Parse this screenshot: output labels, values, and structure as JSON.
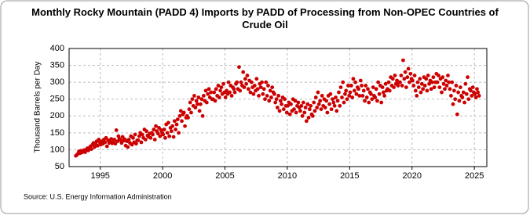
{
  "chart_data": {
    "type": "scatter",
    "title": "Monthly Rocky Mountain (PADD 4) Imports by PADD of Processing from Non-OPEC Countries of Crude Oil",
    "y_label": "Thousand Barrels per Day",
    "source": "Source: U.S. Energy Information Administration",
    "color": "#cc0000",
    "grid": true,
    "xlim": [
      1992.5,
      2026
    ],
    "xticks": [
      1995,
      2000,
      2005,
      2010,
      2015,
      2020,
      2025
    ],
    "ylim": [
      50,
      400
    ],
    "yticks": [
      50,
      100,
      150,
      200,
      250,
      300,
      350,
      400
    ],
    "x": [
      1993.04,
      1993.13,
      1993.21,
      1993.29,
      1993.38,
      1993.46,
      1993.54,
      1993.63,
      1993.71,
      1993.79,
      1993.88,
      1993.96,
      1994.04,
      1994.13,
      1994.21,
      1994.29,
      1994.38,
      1994.46,
      1994.54,
      1994.63,
      1994.71,
      1994.79,
      1994.88,
      1994.96,
      1995.04,
      1995.13,
      1995.21,
      1995.29,
      1995.38,
      1995.46,
      1995.54,
      1995.63,
      1995.71,
      1995.79,
      1995.88,
      1995.96,
      1996.04,
      1996.13,
      1996.21,
      1996.29,
      1996.38,
      1996.46,
      1996.54,
      1996.63,
      1996.71,
      1996.79,
      1996.88,
      1996.96,
      1997.04,
      1997.13,
      1997.21,
      1997.29,
      1997.38,
      1997.46,
      1997.54,
      1997.63,
      1997.71,
      1997.79,
      1997.88,
      1997.96,
      1998.04,
      1998.13,
      1998.21,
      1998.29,
      1998.38,
      1998.46,
      1998.54,
      1998.63,
      1998.71,
      1998.79,
      1998.88,
      1998.96,
      1999.04,
      1999.13,
      1999.21,
      1999.29,
      1999.38,
      1999.46,
      1999.54,
      1999.63,
      1999.71,
      1999.79,
      1999.88,
      1999.96,
      2000.04,
      2000.13,
      2000.21,
      2000.29,
      2000.38,
      2000.46,
      2000.54,
      2000.63,
      2000.71,
      2000.79,
      2000.88,
      2000.96,
      2001.04,
      2001.13,
      2001.21,
      2001.29,
      2001.38,
      2001.46,
      2001.54,
      2001.63,
      2001.71,
      2001.79,
      2001.88,
      2001.96,
      2002.04,
      2002.13,
      2002.21,
      2002.29,
      2002.38,
      2002.46,
      2002.54,
      2002.63,
      2002.71,
      2002.79,
      2002.88,
      2002.96,
      2003.04,
      2003.13,
      2003.21,
      2003.29,
      2003.38,
      2003.46,
      2003.54,
      2003.63,
      2003.71,
      2003.79,
      2003.88,
      2003.96,
      2004.04,
      2004.13,
      2004.21,
      2004.29,
      2004.38,
      2004.46,
      2004.54,
      2004.63,
      2004.71,
      2004.79,
      2004.88,
      2004.96,
      2005.04,
      2005.13,
      2005.21,
      2005.29,
      2005.38,
      2005.46,
      2005.54,
      2005.63,
      2005.71,
      2005.79,
      2005.88,
      2005.96,
      2006.04,
      2006.13,
      2006.21,
      2006.29,
      2006.38,
      2006.46,
      2006.54,
      2006.63,
      2006.71,
      2006.79,
      2006.88,
      2006.96,
      2007.04,
      2007.13,
      2007.21,
      2007.29,
      2007.38,
      2007.46,
      2007.54,
      2007.63,
      2007.71,
      2007.79,
      2007.88,
      2007.96,
      2008.04,
      2008.13,
      2008.21,
      2008.29,
      2008.38,
      2008.46,
      2008.54,
      2008.63,
      2008.71,
      2008.79,
      2008.88,
      2008.96,
      2009.04,
      2009.13,
      2009.21,
      2009.29,
      2009.38,
      2009.46,
      2009.54,
      2009.63,
      2009.71,
      2009.79,
      2009.88,
      2009.96,
      2010.04,
      2010.13,
      2010.21,
      2010.29,
      2010.38,
      2010.46,
      2010.54,
      2010.63,
      2010.71,
      2010.79,
      2010.88,
      2010.96,
      2011.04,
      2011.13,
      2011.21,
      2011.29,
      2011.38,
      2011.46,
      2011.54,
      2011.63,
      2011.71,
      2011.79,
      2011.88,
      2011.96,
      2012.04,
      2012.13,
      2012.21,
      2012.29,
      2012.38,
      2012.46,
      2012.54,
      2012.63,
      2012.71,
      2012.79,
      2012.88,
      2012.96,
      2013.04,
      2013.13,
      2013.21,
      2013.29,
      2013.38,
      2013.46,
      2013.54,
      2013.63,
      2013.71,
      2013.79,
      2013.88,
      2013.96,
      2014.04,
      2014.13,
      2014.21,
      2014.29,
      2014.38,
      2014.46,
      2014.54,
      2014.63,
      2014.71,
      2014.79,
      2014.88,
      2014.96,
      2015.04,
      2015.13,
      2015.21,
      2015.29,
      2015.38,
      2015.46,
      2015.54,
      2015.63,
      2015.71,
      2015.79,
      2015.88,
      2015.96,
      2016.04,
      2016.13,
      2016.21,
      2016.29,
      2016.38,
      2016.46,
      2016.54,
      2016.63,
      2016.71,
      2016.79,
      2016.88,
      2016.96,
      2017.04,
      2017.13,
      2017.21,
      2017.29,
      2017.38,
      2017.46,
      2017.54,
      2017.63,
      2017.71,
      2017.79,
      2017.88,
      2017.96,
      2018.04,
      2018.13,
      2018.21,
      2018.29,
      2018.38,
      2018.46,
      2018.54,
      2018.63,
      2018.71,
      2018.79,
      2018.88,
      2018.96,
      2019.04,
      2019.13,
      2019.21,
      2019.29,
      2019.38,
      2019.46,
      2019.54,
      2019.63,
      2019.71,
      2019.79,
      2019.88,
      2019.96,
      2020.04,
      2020.13,
      2020.21,
      2020.29,
      2020.38,
      2020.46,
      2020.54,
      2020.63,
      2020.71,
      2020.79,
      2020.88,
      2020.96,
      2021.04,
      2021.13,
      2021.21,
      2021.29,
      2021.38,
      2021.46,
      2021.54,
      2021.63,
      2021.71,
      2021.79,
      2021.88,
      2021.96,
      2022.04,
      2022.13,
      2022.21,
      2022.29,
      2022.38,
      2022.46,
      2022.54,
      2022.63,
      2022.71,
      2022.79,
      2022.88,
      2022.96,
      2023.04,
      2023.13,
      2023.21,
      2023.29,
      2023.38,
      2023.46,
      2023.54,
      2023.63,
      2023.71,
      2023.79,
      2023.88,
      2023.96,
      2024.04,
      2024.13,
      2024.21,
      2024.29,
      2024.38,
      2024.46,
      2024.54,
      2024.63,
      2024.71,
      2024.79,
      2024.88,
      2024.96,
      2025.04,
      2025.13,
      2025.21,
      2025.29,
      2025.38
    ],
    "values": [
      82,
      85,
      88,
      95,
      90,
      97,
      92,
      96,
      99,
      93,
      100,
      104,
      98,
      105,
      110,
      102,
      115,
      120,
      108,
      118,
      125,
      112,
      130,
      122,
      115,
      125,
      118,
      130,
      122,
      135,
      110,
      128,
      120,
      125,
      132,
      119,
      122,
      130,
      118,
      158,
      125,
      140,
      132,
      128,
      120,
      138,
      127,
      131,
      112,
      125,
      108,
      130,
      120,
      140,
      115,
      135,
      122,
      145,
      118,
      128,
      128,
      140,
      150,
      122,
      145,
      135,
      160,
      130,
      155,
      142,
      138,
      148,
      135,
      150,
      145,
      160,
      130,
      170,
      155,
      148,
      165,
      140,
      158,
      150,
      145,
      160,
      135,
      175,
      150,
      180,
      140,
      165,
      155,
      170,
      138,
      185,
      160,
      175,
      190,
      150,
      200,
      215,
      185,
      205,
      210,
      170,
      195,
      200,
      195,
      220,
      240,
      210,
      250,
      230,
      260,
      225,
      245,
      235,
      255,
      215,
      235,
      250,
      200,
      260,
      245,
      275,
      240,
      265,
      280,
      255,
      270,
      250,
      250,
      270,
      245,
      280,
      260,
      290,
      255,
      275,
      285,
      265,
      295,
      270,
      255,
      275,
      265,
      300,
      270,
      290,
      260,
      285,
      280,
      270,
      295,
      300,
      280,
      345,
      275,
      300,
      290,
      330,
      285,
      310,
      295,
      320,
      280,
      305,
      270,
      300,
      285,
      265,
      290,
      275,
      310,
      280,
      260,
      295,
      285,
      300,
      265,
      280,
      250,
      300,
      260,
      290,
      245,
      275,
      255,
      285,
      270,
      265,
      240,
      250,
      225,
      260,
      215,
      245,
      235,
      255,
      220,
      250,
      230,
      210,
      230,
      240,
      205,
      235,
      215,
      250,
      220,
      245,
      210,
      230,
      240,
      225,
      215,
      230,
      200,
      240,
      210,
      225,
      185,
      235,
      195,
      220,
      230,
      205,
      200,
      240,
      215,
      255,
      225,
      270,
      235,
      245,
      220,
      260,
      230,
      250,
      225,
      245,
      210,
      260,
      235,
      265,
      220,
      250,
      240,
      230,
      255,
      215,
      245,
      270,
      230,
      285,
      255,
      300,
      240,
      265,
      275,
      250,
      290,
      260,
      270,
      290,
      255,
      310,
      275,
      300,
      265,
      285,
      280,
      260,
      305,
      290,
      260,
      275,
      245,
      290,
      255,
      280,
      240,
      270,
      265,
      250,
      285,
      260,
      255,
      280,
      245,
      300,
      265,
      290,
      240,
      285,
      270,
      260,
      295,
      275,
      280,
      300,
      275,
      315,
      290,
      310,
      285,
      320,
      295,
      305,
      290,
      300,
      300,
      320,
      290,
      365,
      310,
      330,
      285,
      315,
      340,
      300,
      325,
      310,
      305,
      290,
      320,
      275,
      260,
      300,
      285,
      310,
      270,
      295,
      280,
      315,
      290,
      310,
      275,
      320,
      295,
      305,
      280,
      300,
      315,
      285,
      300,
      325,
      300,
      320,
      285,
      310,
      270,
      315,
      295,
      280,
      305,
      290,
      320,
      300,
      280,
      260,
      300,
      235,
      275,
      250,
      290,
      205,
      270,
      245,
      285,
      260,
      255,
      270,
      240,
      295,
      265,
      315,
      250,
      280,
      275,
      260,
      285,
      270,
      265,
      255,
      280,
      270,
      260
    ]
  }
}
